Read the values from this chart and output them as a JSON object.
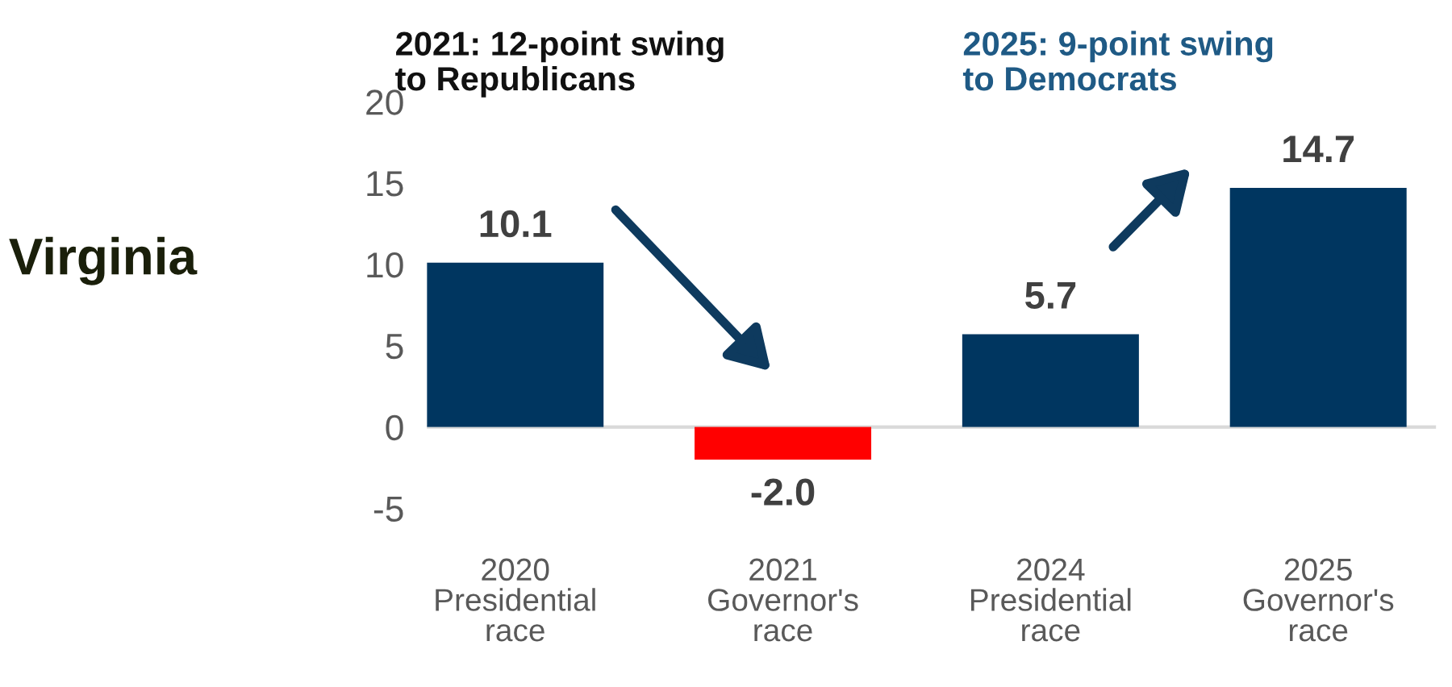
{
  "chart_data": {
    "type": "bar",
    "title": "Virginia",
    "categories": [
      "2020\nPresidential\nrace",
      "2021\nGovernor's\nrace",
      "2024\nPresidential\nrace",
      "2025\nGovernor's\nrace"
    ],
    "values": [
      10.1,
      -2.0,
      5.7,
      14.7
    ],
    "colors": [
      "#003660",
      "#ff0000",
      "#003660",
      "#003660"
    ],
    "value_labels": [
      "10.1",
      "-2.0",
      "5.7",
      "14.7"
    ],
    "ylim": [
      -5,
      20
    ],
    "yticks": [
      {
        "value": -5,
        "label": "-5"
      },
      0,
      5,
      10,
      15,
      20
    ],
    "ref_lines": [
      {
        "axis": "y",
        "value": 0,
        "color": "#d9d9d9"
      }
    ],
    "annotations": [
      "2021: 12-point swing\nto Republicans",
      "2025: 9-point swing\nto Democrats"
    ],
    "grid": false
  }
}
